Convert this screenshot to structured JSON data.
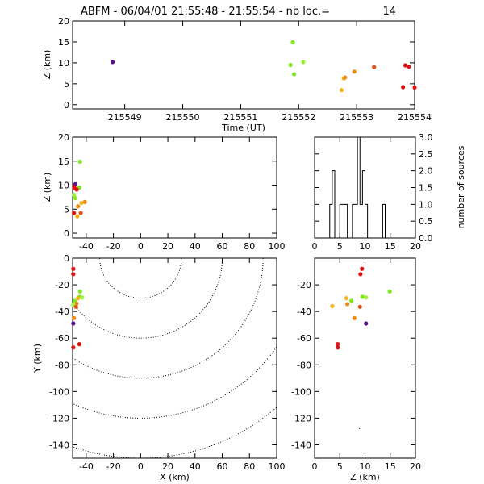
{
  "title": {
    "prefix": "ABFM - 06/04/01 21:55:48 - 21:55:54 - nb loc.=",
    "count": "14"
  },
  "colors": {
    "red": "#e11111",
    "orange_red": "#e8501a",
    "orange": "#f08a16",
    "amber": "#f5b514",
    "green": "#7fe820",
    "light_green": "#a0f040",
    "purple": "#5a0f8a",
    "axes": "#000000",
    "contour": "#000000"
  },
  "chart_data": [
    {
      "id": "time_z",
      "type": "scatter",
      "xlabel": "Time (UT)",
      "ylabel": "Z (km)",
      "xlim": [
        215548.1,
        215554.0
      ],
      "ylim": [
        -1,
        20
      ],
      "xticks": [
        215549,
        215550,
        215551,
        215552,
        215553,
        215554
      ],
      "xtick_labels": [
        "215549",
        "215550",
        "215551",
        "215552",
        "215553",
        "215554"
      ],
      "yticks": [
        0,
        5,
        10,
        15,
        20
      ],
      "ytick_labels": [
        "0",
        "5",
        "10",
        "15",
        "20"
      ],
      "points": [
        {
          "x": 215548.79,
          "y": 10.2,
          "c": "purple"
        },
        {
          "x": 215551.86,
          "y": 9.5,
          "c": "green"
        },
        {
          "x": 215551.9,
          "y": 14.9,
          "c": "green"
        },
        {
          "x": 215551.92,
          "y": 7.3,
          "c": "green"
        },
        {
          "x": 215552.08,
          "y": 10.2,
          "c": "light_green"
        },
        {
          "x": 215552.74,
          "y": 3.5,
          "c": "amber"
        },
        {
          "x": 215552.78,
          "y": 6.3,
          "c": "amber"
        },
        {
          "x": 215552.8,
          "y": 6.5,
          "c": "orange"
        },
        {
          "x": 215552.96,
          "y": 7.9,
          "c": "orange"
        },
        {
          "x": 215553.3,
          "y": 9.0,
          "c": "orange_red"
        },
        {
          "x": 215553.8,
          "y": 4.2,
          "c": "red"
        },
        {
          "x": 215553.84,
          "y": 9.4,
          "c": "red"
        },
        {
          "x": 215553.9,
          "y": 9.1,
          "c": "red"
        },
        {
          "x": 215554.0,
          "y": 4.1,
          "c": "red"
        }
      ]
    },
    {
      "id": "x_z",
      "type": "scatter",
      "xlabel": "",
      "ylabel": "Z (km)",
      "xlim": [
        -50,
        100
      ],
      "ylim": [
        -1,
        20
      ],
      "xticks": [
        -40,
        -20,
        0,
        20,
        40,
        60,
        80,
        100
      ],
      "xtick_labels": [
        "-40",
        "-20",
        "0",
        "20",
        "40",
        "60",
        "80",
        "100"
      ],
      "yticks": [
        0,
        5,
        10,
        15,
        20
      ],
      "ytick_labels": [
        "0",
        "5",
        "10",
        "15",
        "20"
      ],
      "points": [
        {
          "x": -48,
          "y": 10.2,
          "c": "purple"
        },
        {
          "x": -45,
          "y": 9.5,
          "c": "green"
        },
        {
          "x": -44.5,
          "y": 14.9,
          "c": "green"
        },
        {
          "x": -48,
          "y": 7.3,
          "c": "green"
        },
        {
          "x": -49,
          "y": 8.0,
          "c": "light_green"
        },
        {
          "x": -46.5,
          "y": 3.5,
          "c": "amber"
        },
        {
          "x": -43.5,
          "y": 6.3,
          "c": "amber"
        },
        {
          "x": -41,
          "y": 6.5,
          "c": "orange"
        },
        {
          "x": -46,
          "y": 5.6,
          "c": "orange"
        },
        {
          "x": -44,
          "y": 4.2,
          "c": "orange_red"
        },
        {
          "x": -49,
          "y": 4.2,
          "c": "red"
        },
        {
          "x": -48.5,
          "y": 9.4,
          "c": "red"
        },
        {
          "x": -47,
          "y": 9.1,
          "c": "red"
        },
        {
          "x": -49,
          "y": 9.6,
          "c": "red"
        }
      ]
    },
    {
      "id": "histogram",
      "type": "bar",
      "xlabel": "",
      "ylabel": "number of sources",
      "xlim": [
        0,
        20
      ],
      "ylim": [
        0,
        3.0
      ],
      "xticks": [
        0,
        5,
        10,
        15,
        20
      ],
      "xtick_labels": [
        "0",
        "5",
        "10",
        "15",
        "20"
      ],
      "yticks": [
        0,
        0.5,
        1.0,
        1.5,
        2.0,
        2.5,
        3.0
      ],
      "ytick_labels": [
        "0.0",
        "0.5",
        "1.0",
        "1.5",
        "2.0",
        "2.5",
        "3.0"
      ],
      "bin_edges": [
        3,
        3.5,
        4,
        4.5,
        5,
        5.5,
        6,
        6.5,
        7,
        7.5,
        8,
        8.5,
        9,
        9.5,
        10,
        10.5,
        11,
        11.5,
        12,
        12.5,
        13,
        13.5,
        14,
        14.5,
        15
      ],
      "values": [
        1,
        2,
        0,
        0,
        1,
        1,
        1,
        0,
        0,
        1,
        1,
        3,
        1,
        2,
        1,
        0,
        0,
        0,
        0,
        0,
        0,
        1,
        0,
        0
      ]
    },
    {
      "id": "x_y",
      "type": "scatter",
      "xlabel": "X (km)",
      "ylabel": "Y (km)",
      "xlim": [
        -50,
        100
      ],
      "ylim": [
        -150,
        0
      ],
      "xticks": [
        -40,
        -20,
        0,
        20,
        40,
        60,
        80,
        100
      ],
      "xtick_labels": [
        "-40",
        "-20",
        "0",
        "20",
        "40",
        "60",
        "80",
        "100"
      ],
      "yticks": [
        0,
        -20,
        -40,
        -60,
        -80,
        -100,
        -120,
        -140
      ],
      "ytick_labels": [
        "0",
        "-20",
        "-40",
        "-60",
        "-80",
        "-100",
        "-120",
        "-140"
      ],
      "range_rings_km": [
        30,
        60,
        90,
        120,
        150
      ],
      "points": [
        {
          "x": -49.5,
          "y": -8,
          "c": "red"
        },
        {
          "x": -49.5,
          "y": -12,
          "c": "red"
        },
        {
          "x": -44.5,
          "y": -25,
          "c": "green"
        },
        {
          "x": -45,
          "y": -29,
          "c": "green"
        },
        {
          "x": -43,
          "y": -29.5,
          "c": "light_green"
        },
        {
          "x": -46,
          "y": -30,
          "c": "amber"
        },
        {
          "x": -48.5,
          "y": -32,
          "c": "green"
        },
        {
          "x": -47,
          "y": -34,
          "c": "orange"
        },
        {
          "x": -49.5,
          "y": -35,
          "c": "light_green"
        },
        {
          "x": -47.5,
          "y": -36.5,
          "c": "orange_red"
        },
        {
          "x": -49,
          "y": -45,
          "c": "orange"
        },
        {
          "x": -49.5,
          "y": -49,
          "c": "purple"
        },
        {
          "x": -45,
          "y": -64.5,
          "c": "red"
        },
        {
          "x": -49.5,
          "y": -67,
          "c": "red"
        }
      ]
    },
    {
      "id": "z_y",
      "type": "scatter",
      "xlabel": "Z (km)",
      "ylabel": "",
      "xlim": [
        0,
        20
      ],
      "ylim": [
        -150,
        0
      ],
      "xticks": [
        0,
        5,
        10,
        15,
        20
      ],
      "xtick_labels": [
        "0",
        "5",
        "10",
        "15",
        "20"
      ],
      "yticks": [
        -20,
        -40,
        -60,
        -80,
        -100,
        -120,
        -140
      ],
      "ytick_labels": [
        "-20",
        "-40",
        "-60",
        "-80",
        "-100",
        "-120",
        "-140"
      ],
      "points": [
        {
          "x": 9.4,
          "y": -8,
          "c": "red"
        },
        {
          "x": 9.1,
          "y": -12,
          "c": "red"
        },
        {
          "x": 14.9,
          "y": -25,
          "c": "green"
        },
        {
          "x": 9.5,
          "y": -29,
          "c": "green"
        },
        {
          "x": 10.2,
          "y": -29.5,
          "c": "light_green"
        },
        {
          "x": 6.3,
          "y": -30,
          "c": "amber"
        },
        {
          "x": 7.3,
          "y": -32,
          "c": "green"
        },
        {
          "x": 6.5,
          "y": -34.5,
          "c": "orange"
        },
        {
          "x": 3.5,
          "y": -36,
          "c": "amber"
        },
        {
          "x": 9.0,
          "y": -36.5,
          "c": "orange_red"
        },
        {
          "x": 7.9,
          "y": -45,
          "c": "orange"
        },
        {
          "x": 10.2,
          "y": -49,
          "c": "purple"
        },
        {
          "x": 4.6,
          "y": -64.5,
          "c": "red"
        },
        {
          "x": 4.6,
          "y": -67,
          "c": "red"
        }
      ],
      "marker": {
        "x": 8.9,
        "y": -127.5
      }
    }
  ]
}
